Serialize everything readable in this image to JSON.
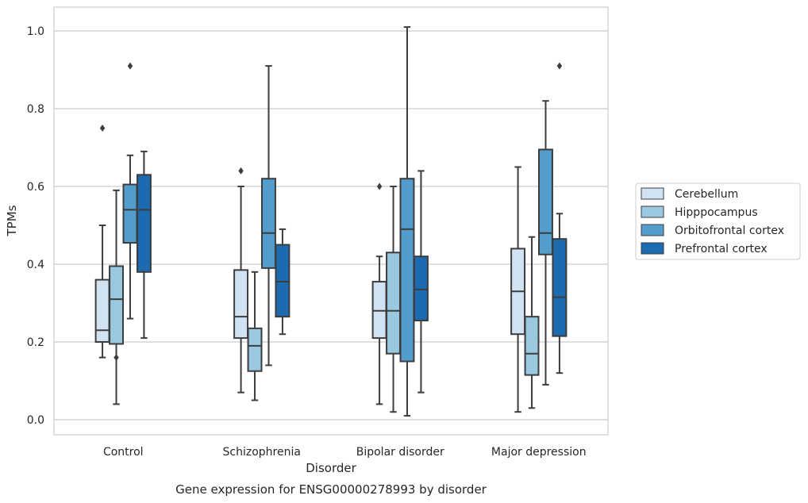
{
  "chart_data": {
    "type": "box",
    "xlabel": "Disorder",
    "ylabel": "TPMs",
    "caption": "Gene expression for ENSG00000278993 by disorder",
    "ylim": [
      -0.04,
      1.06
    ],
    "yticks": [
      0.0,
      0.2,
      0.4,
      0.6,
      0.8,
      1.0
    ],
    "ytick_labels": [
      "0.0",
      "0.2",
      "0.4",
      "0.6",
      "0.8",
      "1.0"
    ],
    "grid": true,
    "legend_position": "right",
    "categories": [
      "Control",
      "Schizophrenia",
      "Bipolar disorder",
      "Major depression"
    ],
    "series": [
      {
        "name": "Cerebellum",
        "color": "#d1e3f3",
        "boxes": [
          {
            "whisker_low": 0.16,
            "q1": 0.2,
            "median": 0.23,
            "q3": 0.36,
            "whisker_high": 0.5,
            "outliers": [
              0.75
            ]
          },
          {
            "whisker_low": 0.07,
            "q1": 0.21,
            "median": 0.265,
            "q3": 0.385,
            "whisker_high": 0.6,
            "outliers": [
              0.64
            ]
          },
          {
            "whisker_low": 0.04,
            "q1": 0.21,
            "median": 0.28,
            "q3": 0.355,
            "whisker_high": 0.42,
            "outliers": [
              0.6
            ]
          },
          {
            "whisker_low": 0.02,
            "q1": 0.22,
            "median": 0.33,
            "q3": 0.44,
            "whisker_high": 0.65,
            "outliers": []
          }
        ]
      },
      {
        "name": "Hipppocampus",
        "color": "#9ac8e0",
        "boxes": [
          {
            "whisker_low": 0.04,
            "q1": 0.195,
            "median": 0.31,
            "q3": 0.395,
            "whisker_high": 0.59,
            "outliers": [
              0.16
            ]
          },
          {
            "whisker_low": 0.05,
            "q1": 0.125,
            "median": 0.19,
            "q3": 0.235,
            "whisker_high": 0.38,
            "outliers": []
          },
          {
            "whisker_low": 0.02,
            "q1": 0.17,
            "median": 0.28,
            "q3": 0.43,
            "whisker_high": 0.6,
            "outliers": []
          },
          {
            "whisker_low": 0.03,
            "q1": 0.115,
            "median": 0.17,
            "q3": 0.265,
            "whisker_high": 0.47,
            "outliers": []
          }
        ]
      },
      {
        "name": "Orbitofrontal cortex",
        "color": "#529dcc",
        "boxes": [
          {
            "whisker_low": 0.26,
            "q1": 0.455,
            "median": 0.54,
            "q3": 0.605,
            "whisker_high": 0.68,
            "outliers": [
              0.91
            ]
          },
          {
            "whisker_low": 0.14,
            "q1": 0.39,
            "median": 0.48,
            "q3": 0.62,
            "whisker_high": 0.91,
            "outliers": []
          },
          {
            "whisker_low": 0.01,
            "q1": 0.15,
            "median": 0.49,
            "q3": 0.62,
            "whisker_high": 1.01,
            "outliers": []
          },
          {
            "whisker_low": 0.09,
            "q1": 0.425,
            "median": 0.48,
            "q3": 0.695,
            "whisker_high": 0.82,
            "outliers": []
          }
        ]
      },
      {
        "name": "Prefrontal cortex",
        "color": "#1c6aaf",
        "boxes": [
          {
            "whisker_low": 0.21,
            "q1": 0.38,
            "median": 0.54,
            "q3": 0.63,
            "whisker_high": 0.69,
            "outliers": []
          },
          {
            "whisker_low": 0.22,
            "q1": 0.265,
            "median": 0.355,
            "q3": 0.45,
            "whisker_high": 0.49,
            "outliers": []
          },
          {
            "whisker_low": 0.07,
            "q1": 0.255,
            "median": 0.335,
            "q3": 0.42,
            "whisker_high": 0.64,
            "outliers": []
          },
          {
            "whisker_low": 0.12,
            "q1": 0.215,
            "median": 0.315,
            "q3": 0.465,
            "whisker_high": 0.53,
            "outliers": [
              0.91
            ]
          }
        ]
      }
    ]
  }
}
